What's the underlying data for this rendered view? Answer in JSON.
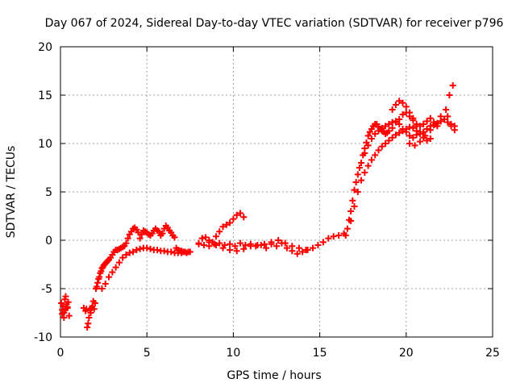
{
  "chart_data": {
    "type": "scatter",
    "title": "Day 067 of 2024, Sidereal Day-to-day VTEC variation (SDTVAR) for receiver p796",
    "xlabel": "GPS time / hours",
    "ylabel": "SDTVAR / TECUs",
    "xlim": [
      0,
      25
    ],
    "ylim": [
      -10,
      20
    ],
    "xticks": [
      0,
      5,
      10,
      15,
      20,
      25
    ],
    "yticks": [
      -10,
      -5,
      0,
      5,
      10,
      15,
      20
    ],
    "grid": true,
    "marker": "plus",
    "color": "#ff0000",
    "series": [
      {
        "x": [
          0.05,
          0.1,
          0.15,
          0.2,
          0.25,
          0.3,
          0.35,
          0.4,
          0.45,
          0.5,
          0.1,
          0.2,
          0.3,
          0.4,
          1.35,
          1.45,
          1.5,
          1.55,
          1.6,
          1.65,
          1.7,
          1.75,
          1.8,
          1.85,
          1.9,
          1.95,
          2.0,
          2.05,
          2.1,
          2.15,
          2.2,
          2.25,
          2.3,
          2.35,
          2.4,
          2.45,
          2.5,
          2.55,
          2.6,
          2.65,
          2.7,
          2.75,
          2.8,
          2.9,
          3.0,
          3.1,
          3.2,
          3.3,
          3.4,
          3.5,
          3.6,
          3.7,
          3.8,
          3.9,
          4.0,
          4.1,
          4.2,
          4.3,
          4.4,
          4.5,
          4.6,
          4.7,
          4.8,
          4.9,
          5.0,
          5.1,
          5.2,
          5.3,
          5.4,
          5.5,
          5.6,
          5.7,
          5.8,
          5.9,
          6.0,
          6.1,
          6.2,
          6.3,
          6.4,
          6.5,
          6.6,
          6.7,
          6.8,
          6.9,
          7.0,
          7.1,
          7.2,
          7.3,
          7.4,
          7.5,
          2.4,
          2.6,
          2.8,
          3.0,
          3.2,
          3.4,
          3.6,
          3.8,
          4.0,
          4.2,
          4.4,
          4.6,
          4.8,
          5.0,
          5.2,
          5.4,
          5.6,
          5.8,
          6.0,
          6.2,
          6.4,
          6.6,
          6.8,
          7.0,
          8.0,
          8.2,
          8.4,
          8.6,
          8.8,
          9.0,
          9.2,
          9.4,
          9.6,
          9.8,
          10.0,
          10.2,
          10.4,
          10.6,
          8.0,
          8.3,
          8.6,
          8.9,
          9.2,
          9.5,
          9.8,
          10.1,
          10.4,
          10.7,
          11.0,
          11.3,
          11.6,
          11.9,
          12.2,
          12.5,
          12.8,
          13.1,
          13.4,
          13.7,
          14.0,
          14.3,
          14.6,
          14.9,
          15.2,
          15.5,
          15.8,
          16.1,
          16.4,
          8.2,
          8.6,
          9.0,
          9.4,
          9.8,
          10.2,
          10.6,
          11.0,
          11.4,
          11.8,
          12.2,
          12.6,
          13.0,
          13.4,
          13.8,
          14.2,
          16.5,
          16.6,
          16.7,
          16.8,
          16.9,
          17.0,
          17.1,
          17.2,
          17.3,
          17.4,
          17.5,
          17.6,
          17.7,
          17.8,
          17.9,
          18.0,
          18.1,
          18.2,
          18.3,
          18.4,
          18.5,
          18.6,
          18.7,
          18.8,
          18.9,
          19.0,
          19.2,
          19.4,
          19.6,
          19.8,
          20.0,
          20.2,
          20.4,
          20.6,
          20.8,
          21.0,
          21.2,
          21.4,
          21.6,
          21.8,
          22.0,
          22.2,
          22.4,
          22.6,
          22.8,
          16.8,
          17.0,
          17.2,
          17.4,
          17.6,
          17.8,
          18.0,
          18.2,
          18.4,
          18.6,
          18.8,
          19.0,
          19.2,
          19.4,
          19.6,
          19.8,
          20.0,
          20.2,
          20.4,
          20.6,
          20.8,
          21.0,
          21.2,
          21.4,
          21.6,
          21.8,
          22.0,
          22.2,
          22.4,
          22.6,
          22.8,
          17.6,
          17.8,
          18.0,
          18.2,
          18.4,
          18.6,
          18.8,
          19.0,
          19.2,
          19.4,
          19.6,
          19.8,
          20.0,
          20.2,
          20.4,
          20.6,
          19.2,
          19.4,
          19.6,
          19.8,
          20.0,
          20.2,
          20.4,
          20.6,
          20.8,
          21.0,
          21.2,
          21.4,
          20.2,
          20.5,
          20.8,
          21.1,
          21.4,
          21.7,
          22.0,
          22.3,
          22.5,
          22.7
        ],
        "y": [
          -6.5,
          -7.2,
          -6.8,
          -7.5,
          -6.1,
          -5.8,
          -6.6,
          -7.0,
          -6.4,
          -7.8,
          -7.6,
          -8.0,
          -7.1,
          -6.9,
          -7.0,
          -7.3,
          -7.1,
          -9.0,
          -8.6,
          -8.0,
          -7.2,
          -7.5,
          -7.0,
          -6.8,
          -6.3,
          -7.1,
          -6.5,
          -5.0,
          -4.8,
          -4.4,
          -4.0,
          -3.8,
          -3.4,
          -3.2,
          -2.9,
          -2.8,
          -2.6,
          -2.5,
          -2.4,
          -2.3,
          -2.2,
          -2.1,
          -2.0,
          -1.8,
          -1.5,
          -1.2,
          -1.0,
          -1.0,
          -0.9,
          -0.8,
          -0.7,
          -0.6,
          -0.3,
          0.2,
          0.6,
          0.9,
          1.2,
          1.3,
          1.1,
          0.8,
          0.2,
          0.6,
          1.0,
          0.9,
          0.8,
          0.6,
          0.5,
          0.7,
          1.0,
          1.2,
          1.0,
          0.9,
          0.5,
          0.7,
          1.2,
          1.5,
          1.3,
          1.0,
          0.8,
          0.5,
          0.3,
          -0.8,
          -1.0,
          -1.1,
          -1.1,
          -1.2,
          -1.2,
          -1.3,
          -1.2,
          -1.2,
          -5.0,
          -4.5,
          -3.8,
          -3.3,
          -2.8,
          -2.3,
          -1.8,
          -1.5,
          -1.3,
          -1.2,
          -1.0,
          -0.9,
          -0.8,
          -0.8,
          -0.9,
          -1.0,
          -1.0,
          -1.1,
          -1.1,
          -1.2,
          -1.2,
          -1.3,
          -1.3,
          -1.3,
          -0.4,
          0.2,
          0.3,
          0.0,
          -0.2,
          0.4,
          0.9,
          1.4,
          1.6,
          1.8,
          2.2,
          2.6,
          2.8,
          2.4,
          -0.3,
          -0.5,
          -0.6,
          -0.4,
          -0.3,
          -0.5,
          -0.4,
          -0.6,
          -0.3,
          -0.5,
          -0.4,
          -0.6,
          -0.5,
          -0.8,
          -0.4,
          -0.6,
          -0.3,
          -0.8,
          -1.1,
          -1.4,
          -1.2,
          -1.0,
          -0.8,
          -0.5,
          -0.2,
          0.2,
          0.4,
          0.5,
          0.7,
          0.2,
          -0.2,
          -0.5,
          -0.8,
          -1.0,
          -1.1,
          -0.9,
          -0.6,
          -0.5,
          -0.4,
          -0.2,
          0.0,
          -0.3,
          -0.6,
          -0.8,
          -1.0,
          0.5,
          1.2,
          2.1,
          3.0,
          4.1,
          5.2,
          6.0,
          6.8,
          7.5,
          8.0,
          8.8,
          9.5,
          10.1,
          10.8,
          11.2,
          11.5,
          11.8,
          12.0,
          12.0,
          11.7,
          11.5,
          11.3,
          11.2,
          11.0,
          11.1,
          11.3,
          11.6,
          12.2,
          12.5,
          13.0,
          13.2,
          12.8,
          12.4,
          12.0,
          11.8,
          12.0,
          12.3,
          12.6,
          12.2,
          11.8,
          12.3,
          12.5,
          12.8,
          12.0,
          11.8,
          2.0,
          3.5,
          5.0,
          6.2,
          7.0,
          7.7,
          8.3,
          8.8,
          9.3,
          9.7,
          10.0,
          10.3,
          10.6,
          10.9,
          11.1,
          11.3,
          11.5,
          11.7,
          11.6,
          11.3,
          11.0,
          11.2,
          11.5,
          11.8,
          11.9,
          12.1,
          12.3,
          12.5,
          12.2,
          11.8,
          11.4,
          9.0,
          9.8,
          10.5,
          11.0,
          11.3,
          11.6,
          11.8,
          12.0,
          12.2,
          12.3,
          12.0,
          11.5,
          11.2,
          10.8,
          10.6,
          10.9,
          13.5,
          14.0,
          14.4,
          14.2,
          13.8,
          13.2,
          12.6,
          11.8,
          11.2,
          10.6,
          10.3,
          10.5,
          10.0,
          9.8,
          10.2,
          10.8,
          11.4,
          12.0,
          12.8,
          13.5,
          15.0,
          16.0
        ]
      }
    ]
  }
}
